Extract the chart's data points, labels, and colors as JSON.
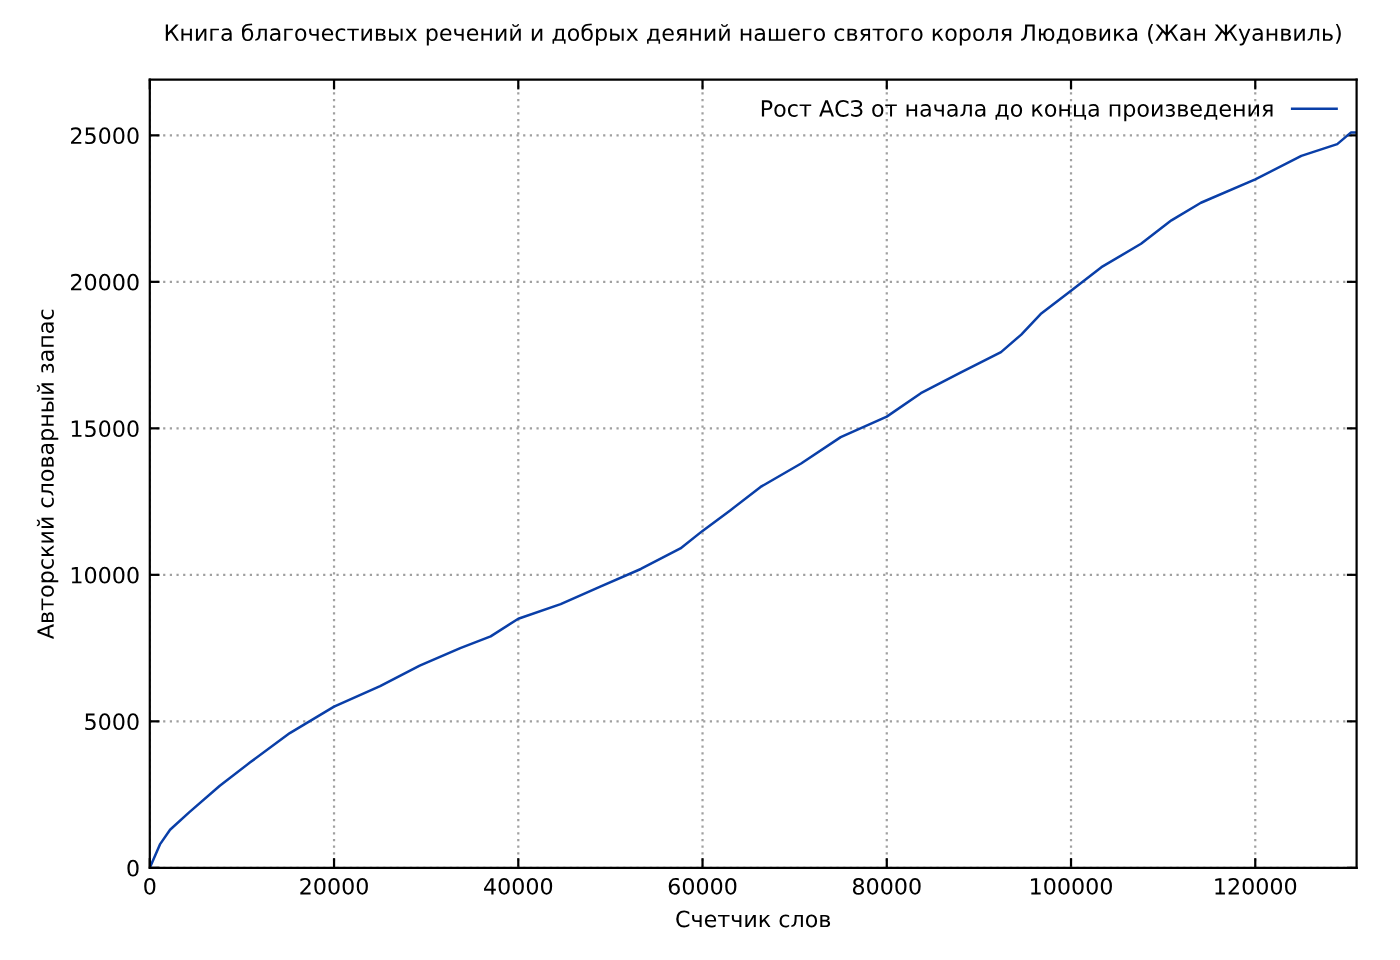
{
  "chart_data": {
    "type": "line",
    "title": "Книга благочестивых речений и добрых деяний нашего святого короля Людовика (Жан Жуанвиль)",
    "xlabel": "Счетчик слов",
    "ylabel": "Авторский словарный запас",
    "x": [
      0,
      1100,
      2200,
      4300,
      7600,
      10900,
      15200,
      20000,
      25000,
      29300,
      33700,
      37000,
      40000,
      44600,
      48900,
      53300,
      57600,
      60000,
      63000,
      66300,
      70700,
      75000,
      80000,
      83700,
      88000,
      92400,
      94600,
      96700,
      100000,
      103300,
      107600,
      110900,
      114100,
      120000,
      125000,
      128900,
      130400,
      131000
    ],
    "series": [
      {
        "name": "Рост АСЗ от начала до конца произведения",
        "color": "#0a3fa8",
        "values": [
          0,
          800,
          1300,
          1900,
          2800,
          3600,
          4600,
          5500,
          6200,
          6900,
          7500,
          7900,
          8500,
          9000,
          9600,
          10200,
          10900,
          11500,
          12200,
          13000,
          13800,
          14700,
          15400,
          16200,
          16900,
          17600,
          18200,
          18900,
          19700,
          20500,
          21300,
          22100,
          22700,
          23500,
          24300,
          24700,
          25100,
          25100
        ]
      }
    ],
    "xlim": [
      0,
      131000
    ],
    "ylim": [
      0,
      26900
    ],
    "xticks": [
      0,
      20000,
      40000,
      60000,
      80000,
      100000,
      120000
    ],
    "yticks": [
      0,
      5000,
      10000,
      15000,
      20000,
      25000
    ],
    "grid": true,
    "legend": "top right",
    "marker": "none",
    "line_style": "solid"
  }
}
